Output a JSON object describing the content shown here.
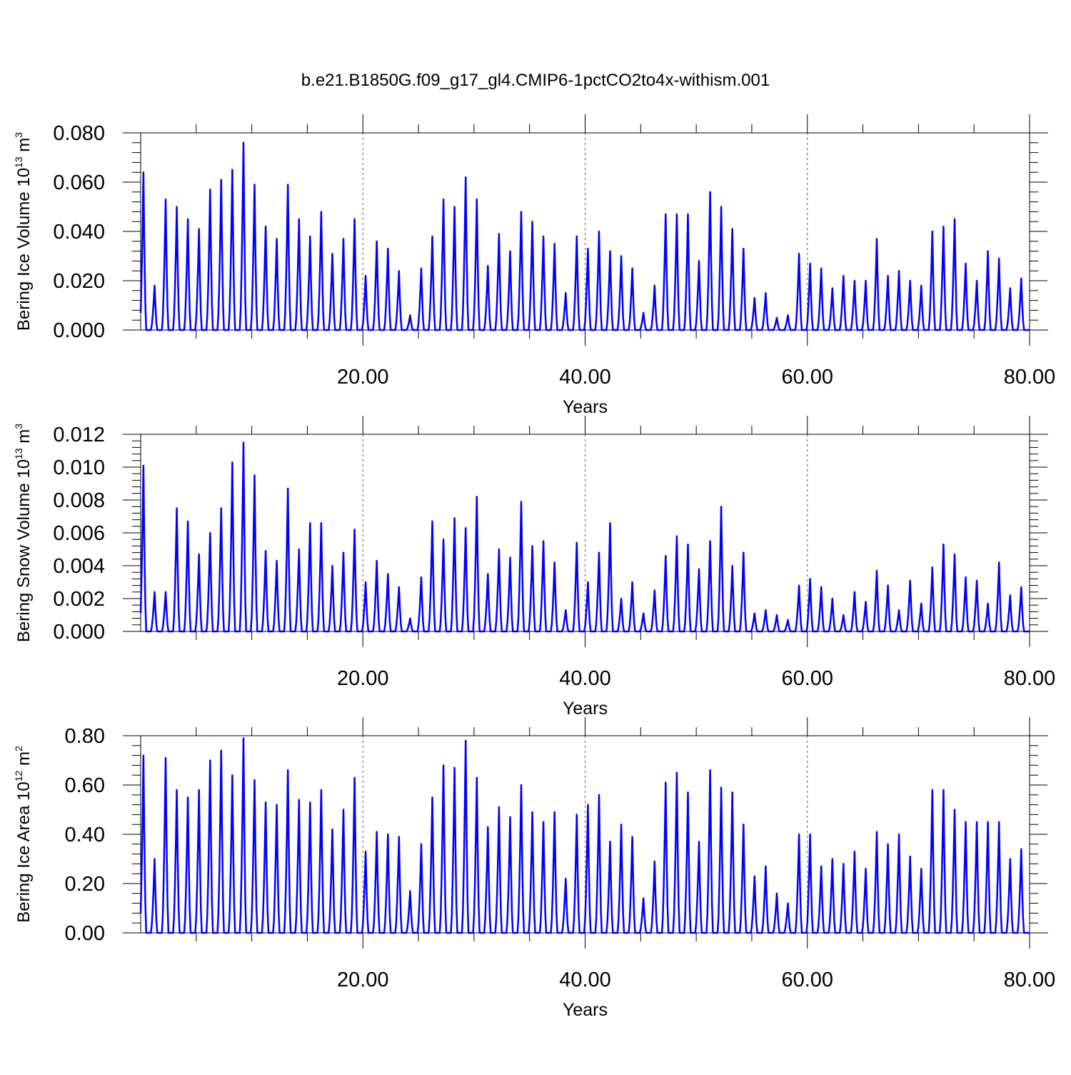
{
  "title": "b.e21.B1850G.f09_g17_gl4.CMIP6-1pctCO2to4x-withism.001",
  "colors": {
    "line": "#0000ff",
    "axis": "#000000",
    "grid": "#555555"
  },
  "chart_data": [
    {
      "type": "line",
      "ylabel_main": "Bering Ice Volume 10",
      "ylabel_exp": "13",
      "ylabel_unit": " m",
      "ylabel_unit_exp": "3",
      "xlabel": "Years",
      "xlim": [
        0,
        80
      ],
      "ylim": [
        0,
        0.08
      ],
      "xticks": [
        20,
        40,
        60,
        80
      ],
      "xtick_labels": [
        "20.00",
        "40.00",
        "60.00",
        "80.00"
      ],
      "yticks": [
        0,
        0.02,
        0.04,
        0.06,
        0.08
      ],
      "ytick_labels": [
        "0.000",
        "0.020",
        "0.040",
        "0.060",
        "0.080"
      ],
      "grid": "dashed vertical lines at 20, 40, 60",
      "series": [
        {
          "peaks": [
            0.064,
            0.018,
            0.053,
            0.05,
            0.045,
            0.041,
            0.057,
            0.061,
            0.065,
            0.076,
            0.059,
            0.042,
            0.037,
            0.059,
            0.045,
            0.038,
            0.048,
            0.031,
            0.037,
            0.045,
            0.022,
            0.036,
            0.033,
            0.024,
            0.006,
            0.025,
            0.038,
            0.053,
            0.05,
            0.062,
            0.053,
            0.026,
            0.039,
            0.032,
            0.048,
            0.044,
            0.038,
            0.035,
            0.015,
            0.038,
            0.033,
            0.04,
            0.032,
            0.03,
            0.025,
            0.007,
            0.018,
            0.047,
            0.047,
            0.047,
            0.028,
            0.056,
            0.05,
            0.041,
            0.033,
            0.013,
            0.015,
            0.005,
            0.006,
            0.031,
            0.027,
            0.025,
            0.017,
            0.022,
            0.02,
            0.02,
            0.037,
            0.022,
            0.024,
            0.02,
            0.018,
            0.04,
            0.042,
            0.045,
            0.027,
            0.02,
            0.032,
            0.029,
            0.017,
            0.021
          ]
        }
      ]
    },
    {
      "type": "line",
      "ylabel_main": "Bering Snow Volume 10",
      "ylabel_exp": "13",
      "ylabel_unit": " m",
      "ylabel_unit_exp": "3",
      "xlabel": "Years",
      "xlim": [
        0,
        80
      ],
      "ylim": [
        0,
        0.012
      ],
      "xticks": [
        20,
        40,
        60,
        80
      ],
      "xtick_labels": [
        "20.00",
        "40.00",
        "60.00",
        "80.00"
      ],
      "yticks": [
        0,
        0.002,
        0.004,
        0.006,
        0.008,
        0.01,
        0.012
      ],
      "ytick_labels": [
        "0.000",
        "0.002",
        "0.004",
        "0.006",
        "0.008",
        "0.010",
        "0.012"
      ],
      "grid": "dashed vertical lines at 20, 40, 60",
      "series": [
        {
          "peaks": [
            0.0101,
            0.0024,
            0.0024,
            0.0075,
            0.0067,
            0.0047,
            0.006,
            0.0075,
            0.0103,
            0.0115,
            0.0095,
            0.0049,
            0.0043,
            0.0087,
            0.005,
            0.0066,
            0.0066,
            0.004,
            0.0048,
            0.0062,
            0.003,
            0.0043,
            0.0035,
            0.0027,
            0.0008,
            0.0033,
            0.0067,
            0.0056,
            0.0069,
            0.0063,
            0.0082,
            0.0035,
            0.005,
            0.0045,
            0.0079,
            0.0052,
            0.0055,
            0.0042,
            0.0013,
            0.0054,
            0.003,
            0.0048,
            0.0066,
            0.002,
            0.003,
            0.0011,
            0.0025,
            0.0046,
            0.0058,
            0.0053,
            0.0038,
            0.0055,
            0.0076,
            0.004,
            0.0048,
            0.0011,
            0.0013,
            0.001,
            0.0007,
            0.0028,
            0.0032,
            0.0027,
            0.002,
            0.001,
            0.0024,
            0.0018,
            0.0037,
            0.0028,
            0.0013,
            0.0031,
            0.0017,
            0.0039,
            0.0053,
            0.0047,
            0.0033,
            0.0031,
            0.0017,
            0.0042,
            0.0022,
            0.0027
          ]
        }
      ]
    },
    {
      "type": "line",
      "ylabel_main": "Bering Ice Area 10",
      "ylabel_exp": "12",
      "ylabel_unit": " m",
      "ylabel_unit_exp": "2",
      "xlabel": "Years",
      "xlim": [
        0,
        80
      ],
      "ylim": [
        0,
        0.8
      ],
      "xticks": [
        20,
        40,
        60,
        80
      ],
      "xtick_labels": [
        "20.00",
        "40.00",
        "60.00",
        "80.00"
      ],
      "yticks": [
        0,
        0.2,
        0.4,
        0.6,
        0.8
      ],
      "ytick_labels": [
        "0.00",
        "0.20",
        "0.40",
        "0.60",
        "0.80"
      ],
      "grid": "dashed vertical lines at 20, 40, 60",
      "series": [
        {
          "peaks": [
            0.72,
            0.3,
            0.71,
            0.58,
            0.55,
            0.58,
            0.7,
            0.74,
            0.64,
            0.79,
            0.62,
            0.53,
            0.52,
            0.66,
            0.54,
            0.53,
            0.58,
            0.42,
            0.5,
            0.63,
            0.33,
            0.41,
            0.4,
            0.39,
            0.17,
            0.36,
            0.55,
            0.68,
            0.67,
            0.78,
            0.63,
            0.43,
            0.51,
            0.47,
            0.6,
            0.49,
            0.45,
            0.49,
            0.22,
            0.48,
            0.52,
            0.56,
            0.37,
            0.44,
            0.39,
            0.14,
            0.29,
            0.61,
            0.65,
            0.57,
            0.37,
            0.66,
            0.59,
            0.57,
            0.44,
            0.23,
            0.27,
            0.16,
            0.12,
            0.4,
            0.4,
            0.27,
            0.3,
            0.28,
            0.33,
            0.26,
            0.41,
            0.36,
            0.4,
            0.31,
            0.26,
            0.58,
            0.58,
            0.5,
            0.45,
            0.45,
            0.45,
            0.45,
            0.3,
            0.34
          ]
        }
      ]
    }
  ]
}
